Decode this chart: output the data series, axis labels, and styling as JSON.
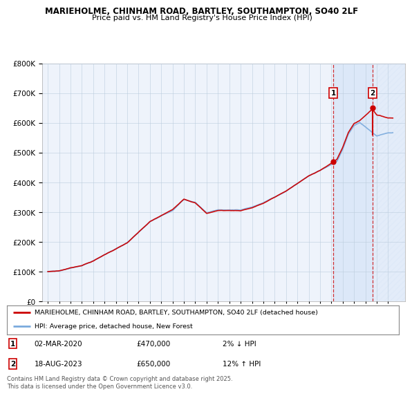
{
  "title_line1": "MARIEHOLME, CHINHAM ROAD, BARTLEY, SOUTHAMPTON, SO40 2LF",
  "title_line2": "Price paid vs. HM Land Registry's House Price Index (HPI)",
  "background_color": "#ffffff",
  "plot_bg_color": "#eef3fb",
  "shade_color": "#dce8f8",
  "hatch_color": "#cccccc",
  "grid_color": "#bbccdd",
  "legend_label_red": "MARIEHOLME, CHINHAM ROAD, BARTLEY, SOUTHAMPTON, SO40 2LF (detached house)",
  "legend_label_blue": "HPI: Average price, detached house, New Forest",
  "footnote": "Contains HM Land Registry data © Crown copyright and database right 2025.\nThis data is licensed under the Open Government Licence v3.0.",
  "marker1_date": "02-MAR-2020",
  "marker1_price": "£470,000",
  "marker1_hpi": "2% ↓ HPI",
  "marker1_x": 2020.17,
  "marker1_y": 470000,
  "marker2_date": "18-AUG-2023",
  "marker2_price": "£650,000",
  "marker2_hpi": "12% ↑ HPI",
  "marker2_x": 2023.63,
  "marker2_y": 650000,
  "ylim": [
    0,
    800000
  ],
  "xlim_start": 1994.5,
  "xlim_end": 2026.5,
  "red_color": "#cc0000",
  "blue_color": "#7aaadd",
  "marker_box_color": "#cc0000",
  "dot_color": "#cc0000"
}
